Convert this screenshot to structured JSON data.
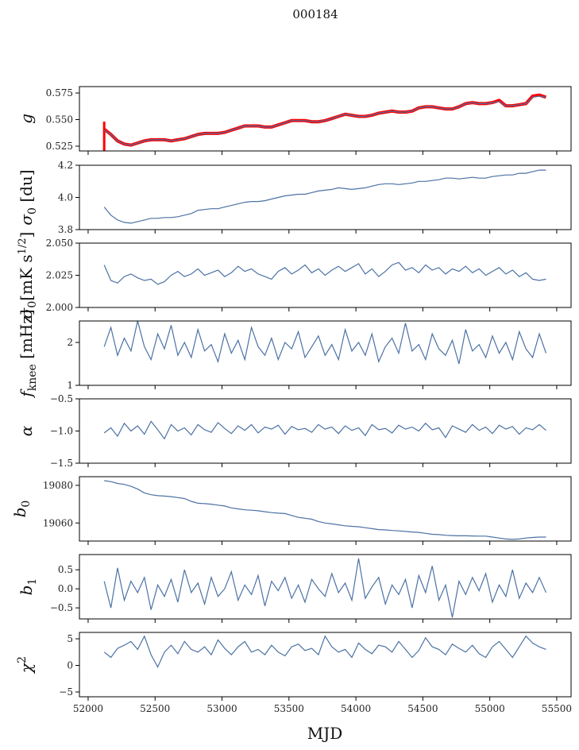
{
  "chart_data": {
    "type": "line",
    "title": "000184",
    "xlabel": "MJD",
    "xlim": [
      51935,
      55607
    ],
    "xticks": [
      52000,
      52500,
      53000,
      53500,
      54000,
      54500,
      55000,
      55500
    ],
    "x_start": 52120,
    "x_step": 50,
    "line_color": "#4c72a4",
    "overlay_color": "#ff0000",
    "panels": [
      {
        "id": "g",
        "ylabel": {
          "main": "g",
          "sub": "",
          "sup": "",
          "unit": ""
        },
        "ylim": [
          0.5205,
          0.581
        ],
        "yticks": [
          0.525,
          0.55,
          0.575
        ],
        "ytick_labels": [
          "0.525",
          "0.550",
          "0.575"
        ],
        "overlay_spike": [
          52120,
          0.5205,
          0.548
        ],
        "overlay": [
          0.541,
          0.536,
          0.53,
          0.527,
          0.526,
          0.528,
          0.53,
          0.531,
          0.531,
          0.531,
          0.53,
          0.531,
          0.532,
          0.534,
          0.536,
          0.537,
          0.537,
          0.537,
          0.538,
          0.54,
          0.542,
          0.544,
          0.544,
          0.544,
          0.543,
          0.543,
          0.545,
          0.547,
          0.549,
          0.549,
          0.549,
          0.548,
          0.548,
          0.549,
          0.551,
          0.553,
          0.555,
          0.554,
          0.553,
          0.553,
          0.554,
          0.556,
          0.557,
          0.558,
          0.557,
          0.557,
          0.558,
          0.561,
          0.562,
          0.562,
          0.561,
          0.56,
          0.56,
          0.562,
          0.565,
          0.566,
          0.565,
          0.565,
          0.566,
          0.568,
          0.563,
          0.563,
          0.564,
          0.565,
          0.572,
          0.573,
          0.571
        ],
        "values": [
          0.54,
          0.536,
          0.53,
          0.527,
          0.526,
          0.528,
          0.53,
          0.531,
          0.531,
          0.531,
          0.53,
          0.531,
          0.532,
          0.534,
          0.536,
          0.537,
          0.537,
          0.537,
          0.538,
          0.54,
          0.542,
          0.544,
          0.544,
          0.544,
          0.543,
          0.543,
          0.545,
          0.547,
          0.549,
          0.549,
          0.549,
          0.548,
          0.548,
          0.549,
          0.551,
          0.553,
          0.555,
          0.554,
          0.553,
          0.553,
          0.554,
          0.556,
          0.557,
          0.558,
          0.557,
          0.557,
          0.558,
          0.561,
          0.562,
          0.562,
          0.561,
          0.56,
          0.56,
          0.562,
          0.565,
          0.566,
          0.565,
          0.565,
          0.566,
          0.567,
          0.563,
          0.563,
          0.564,
          0.565,
          0.571,
          0.572,
          0.571
        ]
      },
      {
        "id": "sigma0_du",
        "ylabel": {
          "main": "σ",
          "sub": "0",
          "sup": "",
          "unit": " [du]"
        },
        "ylim": [
          3.8,
          4.2
        ],
        "yticks": [
          3.8,
          4.0,
          4.2
        ],
        "ytick_labels": [
          "3.8",
          "4.0",
          "4.2"
        ],
        "values": [
          3.94,
          3.89,
          3.86,
          3.845,
          3.84,
          3.85,
          3.86,
          3.87,
          3.87,
          3.875,
          3.875,
          3.88,
          3.89,
          3.9,
          3.92,
          3.925,
          3.93,
          3.93,
          3.94,
          3.95,
          3.96,
          3.97,
          3.975,
          3.975,
          3.98,
          3.99,
          4.0,
          4.01,
          4.015,
          4.02,
          4.02,
          4.03,
          4.04,
          4.045,
          4.05,
          4.06,
          4.055,
          4.05,
          4.055,
          4.06,
          4.07,
          4.08,
          4.085,
          4.085,
          4.08,
          4.085,
          4.09,
          4.1,
          4.1,
          4.105,
          4.11,
          4.12,
          4.12,
          4.115,
          4.12,
          4.125,
          4.12,
          4.12,
          4.13,
          4.135,
          4.14,
          4.14,
          4.15,
          4.15,
          4.16,
          4.17,
          4.17
        ]
      },
      {
        "id": "sigma0_mk",
        "ylabel": {
          "main": "σ",
          "sub": "0",
          "sup": "1/2",
          "unit": "[mK s",
          "unit_end": "]"
        },
        "ylim": [
          2.0,
          2.05
        ],
        "yticks": [
          2.0,
          2.025,
          2.05
        ],
        "ytick_labels": [
          "2.000",
          "2.025",
          "2.050"
        ],
        "values": [
          2.033,
          2.021,
          2.019,
          2.024,
          2.026,
          2.023,
          2.021,
          2.022,
          2.018,
          2.02,
          2.025,
          2.028,
          2.024,
          2.026,
          2.03,
          2.025,
          2.027,
          2.029,
          2.024,
          2.027,
          2.032,
          2.028,
          2.03,
          2.026,
          2.024,
          2.022,
          2.028,
          2.031,
          2.026,
          2.029,
          2.033,
          2.027,
          2.03,
          2.025,
          2.029,
          2.032,
          2.028,
          2.031,
          2.034,
          2.026,
          2.03,
          2.024,
          2.028,
          2.033,
          2.035,
          2.029,
          2.031,
          2.027,
          2.033,
          2.029,
          2.031,
          2.026,
          2.03,
          2.028,
          2.032,
          2.027,
          2.03,
          2.025,
          2.028,
          2.031,
          2.026,
          2.029,
          2.024,
          2.027,
          2.022,
          2.021,
          2.022
        ]
      },
      {
        "id": "fknee",
        "ylabel": {
          "main": "f",
          "sub": "knee",
          "sup": "",
          "unit": " [mHz]"
        },
        "ylim": [
          1,
          2.5
        ],
        "yticks": [
          1,
          2
        ],
        "ytick_labels": [
          "1",
          "2"
        ],
        "values": [
          1.9,
          2.35,
          1.7,
          2.1,
          1.8,
          2.5,
          1.9,
          1.6,
          2.2,
          1.85,
          2.4,
          1.7,
          2.0,
          1.65,
          2.3,
          1.8,
          1.95,
          1.55,
          2.2,
          1.75,
          2.05,
          1.6,
          2.35,
          1.9,
          1.7,
          2.1,
          1.6,
          2.0,
          1.85,
          2.25,
          1.65,
          1.9,
          2.15,
          1.7,
          1.95,
          1.6,
          2.3,
          1.8,
          2.0,
          1.7,
          2.2,
          1.55,
          1.9,
          2.1,
          1.75,
          2.45,
          1.8,
          1.95,
          1.6,
          2.2,
          1.85,
          1.7,
          2.05,
          1.5,
          2.3,
          1.8,
          1.95,
          1.65,
          2.15,
          1.75,
          2.0,
          1.6,
          2.25,
          1.85,
          1.65,
          2.2,
          1.75
        ]
      },
      {
        "id": "alpha",
        "ylabel": {
          "main": "α",
          "sub": "",
          "sup": "",
          "unit": ""
        },
        "ylim": [
          -1.5,
          -0.5
        ],
        "yticks": [
          -1.5,
          -1.0,
          -0.5
        ],
        "ytick_labels": [
          "−1.5",
          "−1.0",
          "−0.5"
        ],
        "values": [
          -1.03,
          -0.95,
          -1.08,
          -0.88,
          -1.0,
          -0.92,
          -1.05,
          -0.85,
          -0.98,
          -1.12,
          -0.9,
          -1.0,
          -0.95,
          -1.06,
          -0.9,
          -0.98,
          -1.02,
          -0.87,
          -0.96,
          -1.04,
          -0.92,
          -0.99,
          -0.9,
          -1.03,
          -0.94,
          -0.97,
          -0.91,
          -1.05,
          -0.93,
          -0.98,
          -0.96,
          -1.02,
          -0.9,
          -0.97,
          -0.94,
          -1.04,
          -0.92,
          -0.99,
          -0.95,
          -1.07,
          -0.9,
          -0.98,
          -0.96,
          -1.03,
          -0.91,
          -0.97,
          -0.94,
          -1.0,
          -0.88,
          -0.98,
          -0.95,
          -1.1,
          -0.92,
          -0.97,
          -1.02,
          -0.9,
          -0.99,
          -0.94,
          -1.04,
          -0.91,
          -0.97,
          -0.93,
          -1.05,
          -0.95,
          -0.98,
          -0.9,
          -0.99
        ]
      },
      {
        "id": "b0",
        "ylabel": {
          "main": "b",
          "sub": "0",
          "sup": "",
          "unit": ""
        },
        "ylim": [
          19050.4,
          19084.6
        ],
        "yticks": [
          19060,
          19080
        ],
        "ytick_labels": [
          "19060",
          "19080"
        ],
        "values": [
          19082.5,
          19082,
          19081,
          19080.5,
          19079.5,
          19078,
          19076,
          19075,
          19074.5,
          19074.3,
          19074,
          19073.5,
          19073,
          19071.5,
          19070.5,
          19070.3,
          19070,
          19069.5,
          19069,
          19068,
          19067.5,
          19067,
          19066.8,
          19066.5,
          19066,
          19065.5,
          19065.2,
          19065,
          19064,
          19063,
          19062.5,
          19062,
          19060.8,
          19060,
          19059.5,
          19059,
          19058.5,
          19058.2,
          19058,
          19057.5,
          19057,
          19056.5,
          19056.3,
          19056,
          19055.8,
          19055.5,
          19055.2,
          19055,
          19054.5,
          19054,
          19053.8,
          19053.5,
          19053.3,
          19053.2,
          19053.2,
          19053.1,
          19053,
          19053,
          19052.5,
          19052,
          19051.5,
          19051.3,
          19051.5,
          19052,
          19052.3,
          19052.5,
          19052.5
        ]
      },
      {
        "id": "b1",
        "ylabel": {
          "main": "b",
          "sub": "1",
          "sup": "",
          "unit": ""
        },
        "ylim": [
          -0.79,
          0.9
        ],
        "yticks": [
          -0.5,
          0.0,
          0.5
        ],
        "ytick_labels": [
          "−0.5",
          "0.0",
          "0.5"
        ],
        "values": [
          0.2,
          -0.5,
          0.55,
          -0.3,
          0.2,
          -0.1,
          0.3,
          -0.55,
          0.1,
          -0.2,
          0.25,
          -0.35,
          0.5,
          -0.1,
          0.15,
          -0.4,
          0.3,
          -0.2,
          0.0,
          0.45,
          -0.3,
          0.1,
          -0.15,
          0.35,
          -0.45,
          0.2,
          -0.05,
          0.3,
          -0.25,
          0.1,
          -0.35,
          0.25,
          0.0,
          -0.2,
          0.4,
          -0.1,
          0.15,
          -0.3,
          0.8,
          -0.25,
          0.05,
          0.3,
          -0.4,
          0.1,
          -0.15,
          0.25,
          -0.5,
          0.35,
          -0.1,
          0.6,
          -0.3,
          0.1,
          -0.75,
          0.2,
          -0.15,
          0.3,
          -0.05,
          0.4,
          -0.35,
          0.1,
          -0.2,
          0.5,
          -0.25,
          0.15,
          -0.1,
          0.3,
          -0.1
        ]
      },
      {
        "id": "chi2",
        "ylabel": {
          "main": "χ",
          "sub": "",
          "sup": "2",
          "unit": ""
        },
        "ylim": [
          -5.9,
          6.2
        ],
        "yticks": [
          -5,
          0,
          5
        ],
        "ytick_labels": [
          "−5",
          "0",
          "5"
        ],
        "values": [
          2.5,
          1.5,
          3.2,
          3.8,
          4.5,
          3.0,
          5.5,
          2.0,
          -0.3,
          2.5,
          3.8,
          2.2,
          4.5,
          3.0,
          2.5,
          3.5,
          2.0,
          4.8,
          3.2,
          2.0,
          3.5,
          4.5,
          2.5,
          3.0,
          2.0,
          3.8,
          2.5,
          1.8,
          3.5,
          4.0,
          2.8,
          3.2,
          2.0,
          5.5,
          3.5,
          2.5,
          3.0,
          1.5,
          4.2,
          3.0,
          2.2,
          3.8,
          3.5,
          2.5,
          4.5,
          3.0,
          1.5,
          2.8,
          5.2,
          3.5,
          3.0,
          2.0,
          4.0,
          3.2,
          2.5,
          3.8,
          2.2,
          1.5,
          3.5,
          4.5,
          3.0,
          1.5,
          3.5,
          5.5,
          4.2,
          3.5,
          3.0
        ]
      }
    ]
  }
}
